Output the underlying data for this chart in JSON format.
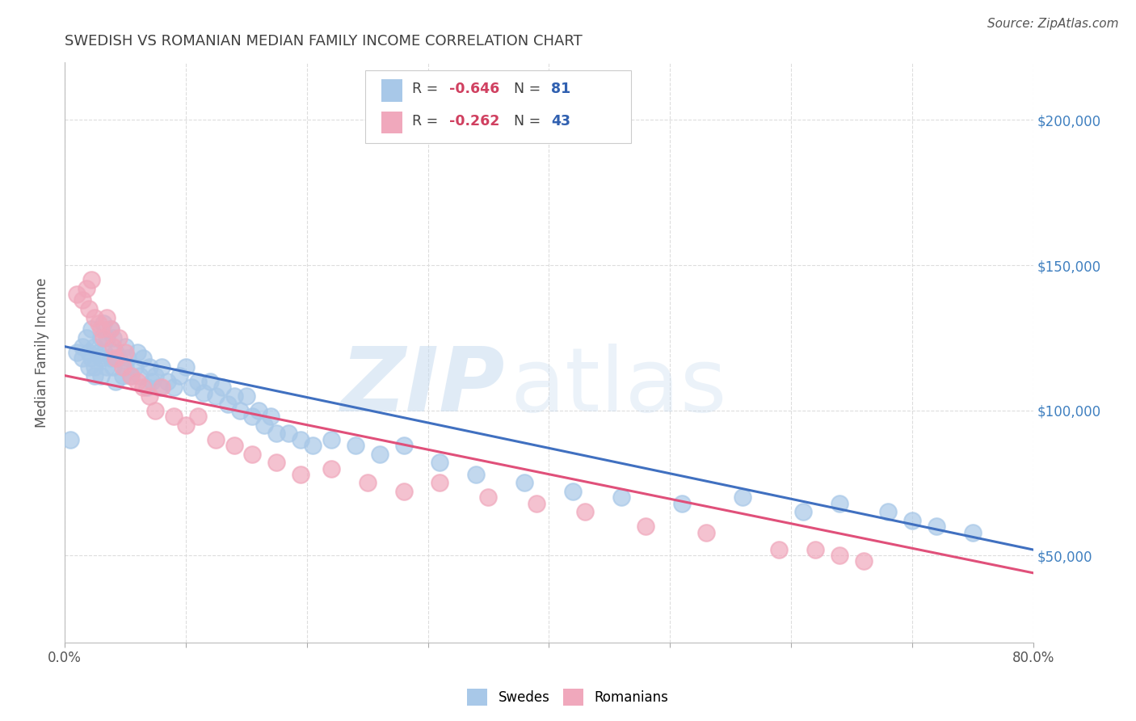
{
  "title": "SWEDISH VS ROMANIAN MEDIAN FAMILY INCOME CORRELATION CHART",
  "source": "Source: ZipAtlas.com",
  "ylabel": "Median Family Income",
  "watermark": "ZIPatlas",
  "xlim": [
    0.0,
    0.8
  ],
  "ylim": [
    20000,
    220000
  ],
  "yticks": [
    50000,
    100000,
    150000,
    200000
  ],
  "ytick_labels": [
    "$50,000",
    "$100,000",
    "$150,000",
    "$200,000"
  ],
  "xticks": [
    0.0,
    0.1,
    0.2,
    0.3,
    0.4,
    0.5,
    0.6,
    0.7,
    0.8
  ],
  "xtick_labels": [
    "0.0%",
    "",
    "",
    "",
    "",
    "",
    "",
    "",
    "80.0%"
  ],
  "swedes_R": -0.646,
  "swedes_N": 81,
  "romanians_R": -0.262,
  "romanians_N": 43,
  "blue_scatter_color": "#A8C8E8",
  "pink_scatter_color": "#F0A8BC",
  "blue_line_color": "#4070C0",
  "pink_line_color": "#E0507A",
  "title_color": "#404040",
  "axis_label_color": "#4080C0",
  "background_color": "#FFFFFF",
  "grid_color": "#DDDDDD",
  "sw_line_x0": 0.0,
  "sw_line_y0": 122000,
  "sw_line_x1": 0.8,
  "sw_line_y1": 52000,
  "ro_line_x0": 0.0,
  "ro_line_y0": 112000,
  "ro_line_x1": 0.8,
  "ro_line_y1": 44000,
  "swedes_x": [
    0.005,
    0.01,
    0.015,
    0.015,
    0.018,
    0.02,
    0.02,
    0.022,
    0.022,
    0.025,
    0.025,
    0.025,
    0.028,
    0.03,
    0.03,
    0.03,
    0.032,
    0.033,
    0.035,
    0.035,
    0.038,
    0.038,
    0.04,
    0.04,
    0.042,
    0.042,
    0.045,
    0.048,
    0.05,
    0.05,
    0.052,
    0.055,
    0.058,
    0.06,
    0.062,
    0.065,
    0.068,
    0.07,
    0.072,
    0.075,
    0.078,
    0.08,
    0.085,
    0.09,
    0.095,
    0.1,
    0.105,
    0.11,
    0.115,
    0.12,
    0.125,
    0.13,
    0.135,
    0.14,
    0.145,
    0.15,
    0.155,
    0.16,
    0.165,
    0.17,
    0.175,
    0.185,
    0.195,
    0.205,
    0.22,
    0.24,
    0.26,
    0.28,
    0.31,
    0.34,
    0.38,
    0.42,
    0.46,
    0.51,
    0.56,
    0.61,
    0.64,
    0.68,
    0.7,
    0.72,
    0.75
  ],
  "swedes_y": [
    90000,
    120000,
    122000,
    118000,
    125000,
    120000,
    115000,
    128000,
    118000,
    122000,
    115000,
    112000,
    120000,
    125000,
    118000,
    112000,
    130000,
    120000,
    125000,
    115000,
    128000,
    118000,
    125000,
    115000,
    120000,
    110000,
    118000,
    112000,
    122000,
    115000,
    118000,
    112000,
    115000,
    120000,
    112000,
    118000,
    108000,
    115000,
    110000,
    112000,
    108000,
    115000,
    110000,
    108000,
    112000,
    115000,
    108000,
    110000,
    106000,
    110000,
    105000,
    108000,
    102000,
    105000,
    100000,
    105000,
    98000,
    100000,
    95000,
    98000,
    92000,
    92000,
    90000,
    88000,
    90000,
    88000,
    85000,
    88000,
    82000,
    78000,
    75000,
    72000,
    70000,
    68000,
    70000,
    65000,
    68000,
    65000,
    62000,
    60000,
    58000
  ],
  "romanians_x": [
    0.01,
    0.015,
    0.018,
    0.02,
    0.022,
    0.025,
    0.028,
    0.03,
    0.032,
    0.035,
    0.038,
    0.04,
    0.042,
    0.045,
    0.048,
    0.05,
    0.055,
    0.06,
    0.065,
    0.07,
    0.075,
    0.08,
    0.09,
    0.1,
    0.11,
    0.125,
    0.14,
    0.155,
    0.175,
    0.195,
    0.22,
    0.25,
    0.28,
    0.31,
    0.35,
    0.39,
    0.43,
    0.48,
    0.53,
    0.59,
    0.62,
    0.64,
    0.66
  ],
  "romanians_y": [
    140000,
    138000,
    142000,
    135000,
    145000,
    132000,
    130000,
    128000,
    125000,
    132000,
    128000,
    122000,
    118000,
    125000,
    115000,
    120000,
    112000,
    110000,
    108000,
    105000,
    100000,
    108000,
    98000,
    95000,
    98000,
    90000,
    88000,
    85000,
    82000,
    78000,
    80000,
    75000,
    72000,
    75000,
    70000,
    68000,
    65000,
    60000,
    58000,
    52000,
    52000,
    50000,
    48000
  ]
}
